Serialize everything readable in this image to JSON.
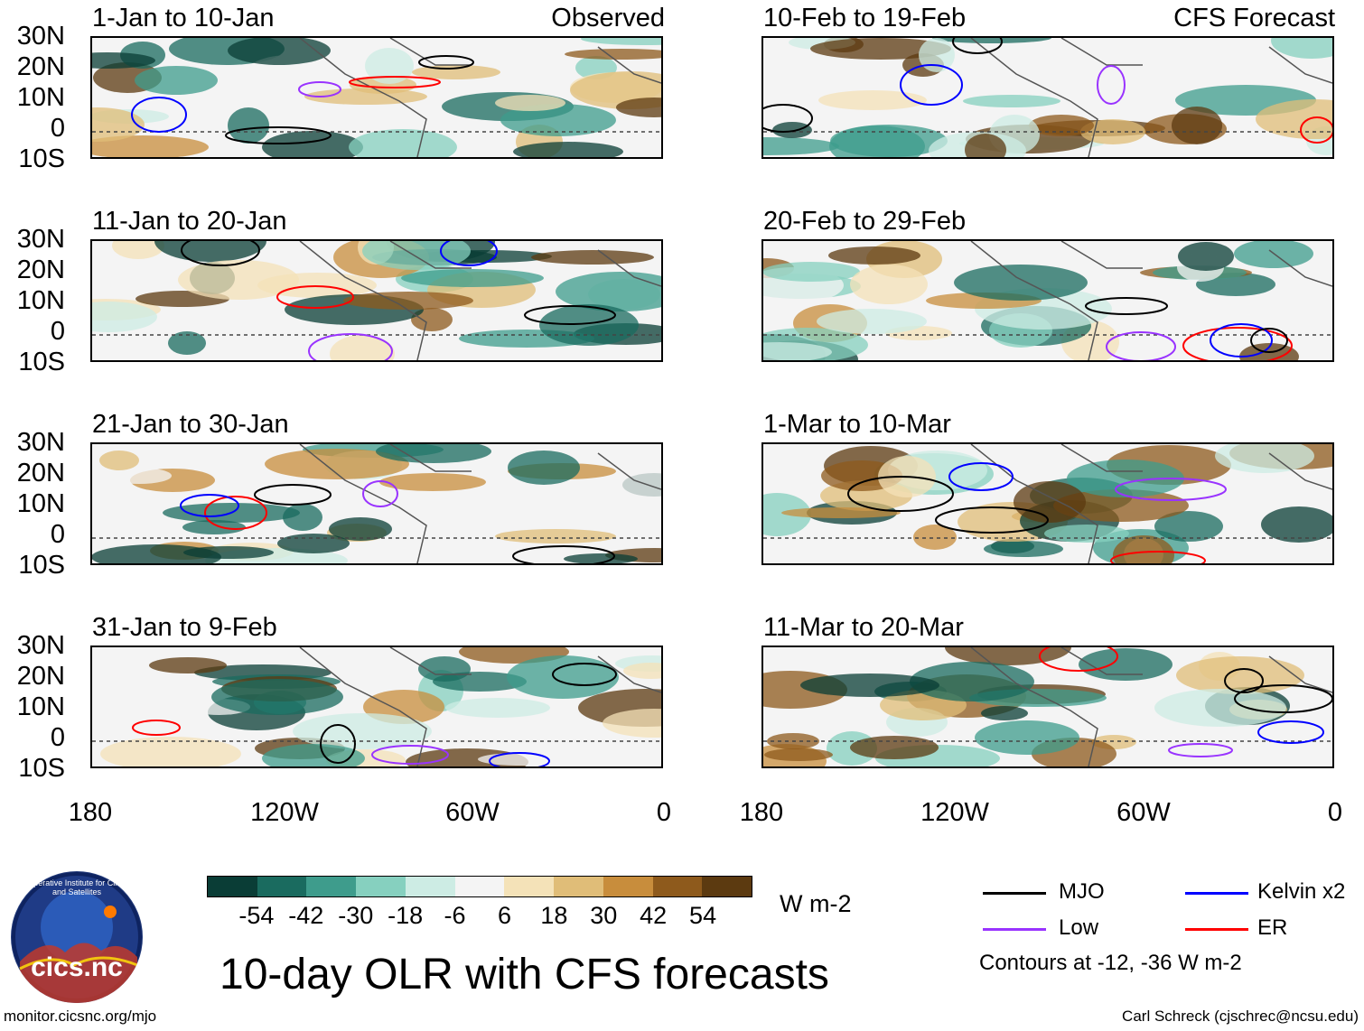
{
  "title": "10-day OLR with CFS forecasts",
  "observed_label": "Observed",
  "forecast_label": "CFS Forecast",
  "left_panels": [
    {
      "title": "1-Jan to 10-Jan"
    },
    {
      "title": "11-Jan to 20-Jan"
    },
    {
      "title": "21-Jan to 30-Jan"
    },
    {
      "title": "31-Jan to 9-Feb"
    }
  ],
  "right_panels": [
    {
      "title": "10-Feb to 19-Feb"
    },
    {
      "title": "20-Feb to 29-Feb"
    },
    {
      "title": "1-Mar to 10-Mar"
    },
    {
      "title": "11-Mar to 20-Mar"
    }
  ],
  "lat_labels": [
    "30N",
    "20N",
    "10N",
    "0",
    "10S"
  ],
  "lon_labels": [
    "180",
    "120W",
    "60W",
    "0"
  ],
  "colorbar": {
    "colors": [
      "#0a3d36",
      "#1a6b5f",
      "#3e9c8c",
      "#86d0bf",
      "#cdece4",
      "#f4f4f4",
      "#f4e2b8",
      "#e0bd78",
      "#c88d3c",
      "#8e5a1c",
      "#5c3a10"
    ],
    "labels": [
      "-54",
      "-42",
      "-30",
      "-18",
      "-6",
      "6",
      "18",
      "30",
      "42",
      "54"
    ],
    "unit": "W m-2"
  },
  "legend": {
    "items": [
      {
        "label": "MJO",
        "color": "#000000"
      },
      {
        "label": "Kelvin x2",
        "color": "#0000ff"
      },
      {
        "label": "Low",
        "color": "#9933ff"
      },
      {
        "label": "ER",
        "color": "#ff0000"
      }
    ],
    "note": "Contours at -12, -36 W m-2"
  },
  "logo_text": "cics.nc",
  "logo_ring_text": "Cooperative Institute for Climate and Satellites",
  "url": "monitor.cicsnc.org/mjo",
  "credit": "Carl Schreck (cjschrec@ncsu.edu)"
}
